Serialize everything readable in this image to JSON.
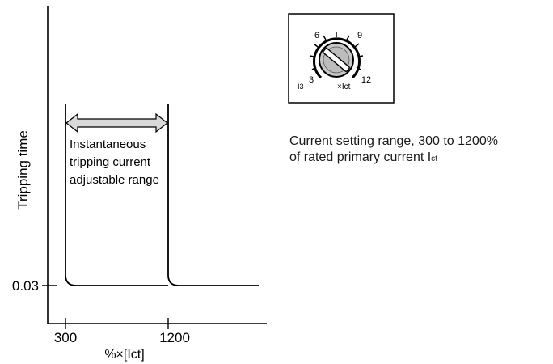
{
  "graph": {
    "y_axis_label": "Tripping time",
    "y_tick_003": "0.03",
    "x_tick_300": "300",
    "x_tick_1200": "1200",
    "x_axis_label": "%×[Ict]",
    "range_label_lines": [
      "Instantaneous",
      "tripping current",
      "adjustable range"
    ]
  },
  "dial": {
    "tick_3": "3",
    "tick_6": "6",
    "tick_9": "9",
    "tick_12": "12",
    "left_label": "I3",
    "right_label": "×Ict"
  },
  "caption": {
    "line1": "Current setting range, 300 to 1200%",
    "line2_main": "of rated primary current I",
    "line2_sub": "ct"
  },
  "colors": {
    "arrow_fill": "#d9d9d9",
    "line": "#000000"
  }
}
